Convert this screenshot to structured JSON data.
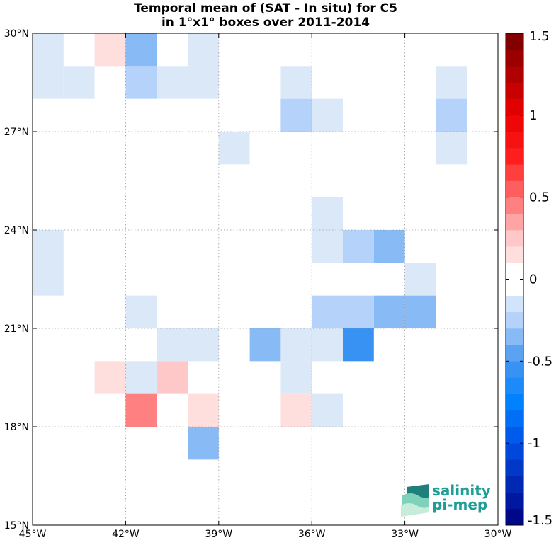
{
  "title": {
    "line1": "Temporal mean of (SAT - In situ) for C5",
    "line2": "in 1°x1° boxes over 2011-2014"
  },
  "logo": {
    "line1": "salinity",
    "line2": "pi-mep"
  },
  "chart_data": {
    "type": "heatmap",
    "x_range": [
      -45,
      -30
    ],
    "y_range": [
      15,
      30
    ],
    "x_ticks": [
      {
        "value": -45,
        "label": "45°W"
      },
      {
        "value": -42,
        "label": "42°W"
      },
      {
        "value": -39,
        "label": "39°W"
      },
      {
        "value": -36,
        "label": "36°W"
      },
      {
        "value": -33,
        "label": "33°W"
      },
      {
        "value": -30,
        "label": "30°W"
      }
    ],
    "y_ticks": [
      {
        "value": 30,
        "label": "30°N"
      },
      {
        "value": 27,
        "label": "27°N"
      },
      {
        "value": 24,
        "label": "24°N"
      },
      {
        "value": 21,
        "label": "21°N"
      },
      {
        "value": 18,
        "label": "18°N"
      },
      {
        "value": 15,
        "label": "15°N"
      }
    ],
    "grid": true,
    "grid_style": "dotted",
    "colorbar": {
      "range": [
        -1.5,
        1.5
      ],
      "levels": 30,
      "ticks": [
        {
          "value": 1.5,
          "label": "1.5"
        },
        {
          "value": 1,
          "label": "1"
        },
        {
          "value": 0.5,
          "label": "0.5"
        },
        {
          "value": 0,
          "label": "0"
        },
        {
          "value": -0.5,
          "label": "-0.5"
        },
        {
          "value": -1,
          "label": "-1"
        },
        {
          "value": -1.5,
          "label": "-1.5"
        }
      ]
    },
    "cells": [
      {
        "lon": -45,
        "lat": 29,
        "value": -0.05
      },
      {
        "lon": -43,
        "lat": 29,
        "value": 0.15
      },
      {
        "lon": -42,
        "lat": 29,
        "value": -0.35
      },
      {
        "lon": -40,
        "lat": 29,
        "value": -0.05
      },
      {
        "lon": -45,
        "lat": 28,
        "value": -0.05
      },
      {
        "lon": -44,
        "lat": 28,
        "value": -0.05
      },
      {
        "lon": -42,
        "lat": 28,
        "value": -0.25
      },
      {
        "lon": -41,
        "lat": 28,
        "value": -0.05
      },
      {
        "lon": -40,
        "lat": 28,
        "value": -0.05
      },
      {
        "lon": -37,
        "lat": 28,
        "value": -0.05
      },
      {
        "lon": -32,
        "lat": 28,
        "value": -0.05
      },
      {
        "lon": -37,
        "lat": 27,
        "value": -0.25
      },
      {
        "lon": -36,
        "lat": 27,
        "value": -0.05
      },
      {
        "lon": -32,
        "lat": 27,
        "value": -0.25
      },
      {
        "lon": -39,
        "lat": 26,
        "value": -0.05
      },
      {
        "lon": -32,
        "lat": 26,
        "value": -0.05
      },
      {
        "lon": -36,
        "lat": 24,
        "value": -0.05
      },
      {
        "lon": -45,
        "lat": 23,
        "value": -0.05
      },
      {
        "lon": -36,
        "lat": 23,
        "value": -0.05
      },
      {
        "lon": -35,
        "lat": 23,
        "value": -0.25
      },
      {
        "lon": -34,
        "lat": 23,
        "value": -0.35
      },
      {
        "lon": -45,
        "lat": 22,
        "value": -0.05
      },
      {
        "lon": -33,
        "lat": 22,
        "value": -0.05
      },
      {
        "lon": -42,
        "lat": 21,
        "value": -0.05
      },
      {
        "lon": -36,
        "lat": 21,
        "value": -0.25
      },
      {
        "lon": -35,
        "lat": 21,
        "value": -0.25
      },
      {
        "lon": -34,
        "lat": 21,
        "value": -0.35
      },
      {
        "lon": -33,
        "lat": 21,
        "value": -0.35
      },
      {
        "lon": -41,
        "lat": 20,
        "value": -0.05
      },
      {
        "lon": -40,
        "lat": 20,
        "value": -0.05
      },
      {
        "lon": -38,
        "lat": 20,
        "value": -0.35
      },
      {
        "lon": -37,
        "lat": 20,
        "value": -0.05
      },
      {
        "lon": -36,
        "lat": 20,
        "value": -0.05
      },
      {
        "lon": -35,
        "lat": 20,
        "value": -0.55
      },
      {
        "lon": -43,
        "lat": 19,
        "value": 0.15
      },
      {
        "lon": -42,
        "lat": 19,
        "value": -0.05
      },
      {
        "lon": -41,
        "lat": 19,
        "value": 0.25
      },
      {
        "lon": -37,
        "lat": 19,
        "value": -0.05
      },
      {
        "lon": -42,
        "lat": 18,
        "value": 0.45
      },
      {
        "lon": -40,
        "lat": 18,
        "value": 0.15
      },
      {
        "lon": -37,
        "lat": 18,
        "value": 0.15
      },
      {
        "lon": -36,
        "lat": 18,
        "value": -0.05
      },
      {
        "lon": -40,
        "lat": 17,
        "value": -0.35
      }
    ]
  }
}
